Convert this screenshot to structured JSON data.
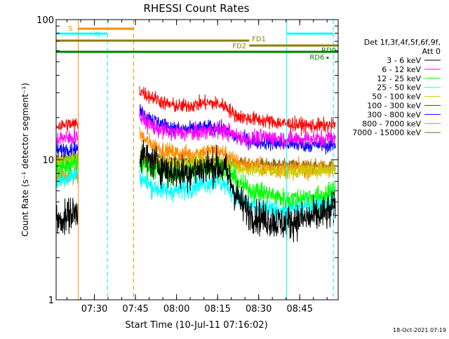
{
  "chart_data": {
    "type": "line",
    "title": "RHESSI Count Rates",
    "xlabel": "Start Time (10-Jul-11 07:16:02)",
    "ylabel": "Count Rate (s⁻¹ detector segment⁻¹)",
    "yscale": "log",
    "ylim": [
      1,
      100
    ],
    "xlim_minutes": [
      0,
      103
    ],
    "start_time": "07:16:02",
    "x_ticks": [
      {
        "label": "07:30",
        "t": 13.97
      },
      {
        "label": "07:45",
        "t": 28.97
      },
      {
        "label": "08:00",
        "t": 43.97
      },
      {
        "label": "08:15",
        "t": 58.97
      },
      {
        "label": "08:30",
        "t": 73.97
      },
      {
        "label": "08:45",
        "t": 88.97
      }
    ],
    "y_ticks": [
      {
        "label": "1",
        "v": 1
      },
      {
        "label": "10",
        "v": 10
      },
      {
        "label": "100",
        "v": 100
      }
    ],
    "legend_title": "Det 1f,3f,4f,5f,6f,9f,",
    "legend_subtitle": "Att 0",
    "data_gaps": [
      {
        "start": 8.0,
        "end": 30.5
      }
    ],
    "series": [
      {
        "name": "3 - 6 keV",
        "color": "#000000",
        "noise": 0.12,
        "values": [
          [
            0,
            3.8
          ],
          [
            1,
            3.6
          ],
          [
            2,
            3.9
          ],
          [
            3,
            3.7
          ],
          [
            4,
            3.9
          ],
          [
            5,
            4.2
          ],
          [
            6,
            4.0
          ],
          [
            7,
            4.3
          ],
          [
            8,
            4.3
          ],
          [
            30.5,
            11.0
          ],
          [
            31,
            11.0
          ],
          [
            33,
            10.2
          ],
          [
            36,
            9.5
          ],
          [
            40,
            8.5
          ],
          [
            45,
            8.0
          ],
          [
            50,
            8.3
          ],
          [
            55,
            8.8
          ],
          [
            59,
            9.0
          ],
          [
            62,
            8.3
          ],
          [
            65,
            6.0
          ],
          [
            68,
            4.7
          ],
          [
            72,
            4.0
          ],
          [
            76,
            3.8
          ],
          [
            80,
            3.6
          ],
          [
            84,
            3.5
          ],
          [
            88,
            3.7
          ],
          [
            92,
            3.8
          ],
          [
            96,
            4.0
          ],
          [
            100,
            4.2
          ],
          [
            102,
            4.6
          ]
        ]
      },
      {
        "name": "6 - 12 keV",
        "color": "#ff00ff",
        "noise": 0.06,
        "values": [
          [
            0,
            14.0
          ],
          [
            2,
            14.5
          ],
          [
            4,
            14.0
          ],
          [
            6,
            14.5
          ],
          [
            8,
            15.0
          ],
          [
            30.5,
            20.0
          ],
          [
            31,
            20.0
          ],
          [
            33,
            18.5
          ],
          [
            36,
            17.0
          ],
          [
            40,
            16.0
          ],
          [
            45,
            15.5
          ],
          [
            50,
            15.5
          ],
          [
            55,
            16.0
          ],
          [
            59,
            16.5
          ],
          [
            62,
            16.0
          ],
          [
            65,
            15.0
          ],
          [
            68,
            14.3
          ],
          [
            72,
            14.0
          ],
          [
            76,
            14.5
          ],
          [
            80,
            14.3
          ],
          [
            84,
            14.0
          ],
          [
            88,
            14.0
          ],
          [
            92,
            14.2
          ],
          [
            96,
            14.0
          ],
          [
            100,
            14.3
          ],
          [
            102,
            14.3
          ]
        ]
      },
      {
        "name": "12 - 25 keV",
        "color": "#00ff00",
        "noise": 0.07,
        "values": [
          [
            0,
            8.5
          ],
          [
            2,
            8.8
          ],
          [
            4,
            9.0
          ],
          [
            6,
            9.2
          ],
          [
            8,
            9.5
          ],
          [
            30.5,
            9.5
          ],
          [
            31,
            9.5
          ],
          [
            33,
            9.0
          ],
          [
            36,
            8.5
          ],
          [
            40,
            8.0
          ],
          [
            45,
            7.8
          ],
          [
            50,
            8.2
          ],
          [
            55,
            8.8
          ],
          [
            59,
            9.0
          ],
          [
            62,
            8.5
          ],
          [
            65,
            7.5
          ],
          [
            68,
            6.5
          ],
          [
            72,
            6.0
          ],
          [
            76,
            5.8
          ],
          [
            80,
            5.5
          ],
          [
            84,
            5.2
          ],
          [
            88,
            5.3
          ],
          [
            92,
            5.5
          ],
          [
            96,
            5.5
          ],
          [
            100,
            5.8
          ],
          [
            102,
            6.0
          ]
        ]
      },
      {
        "name": "25 - 50 keV",
        "color": "#00ffff",
        "noise": 0.07,
        "values": [
          [
            0,
            7.0
          ],
          [
            2,
            7.2
          ],
          [
            4,
            7.5
          ],
          [
            6,
            7.7
          ],
          [
            8,
            8.0
          ],
          [
            30.5,
            7.5
          ],
          [
            31,
            7.5
          ],
          [
            33,
            6.8
          ],
          [
            36,
            6.3
          ],
          [
            40,
            6.0
          ],
          [
            45,
            6.0
          ],
          [
            50,
            6.5
          ],
          [
            55,
            6.9
          ],
          [
            59,
            7.0
          ],
          [
            62,
            6.5
          ],
          [
            65,
            5.7
          ],
          [
            68,
            5.0
          ],
          [
            72,
            4.6
          ],
          [
            76,
            4.4
          ],
          [
            80,
            4.3
          ],
          [
            84,
            4.4
          ],
          [
            88,
            4.5
          ],
          [
            92,
            4.7
          ],
          [
            96,
            4.9
          ],
          [
            100,
            5.0
          ],
          [
            102,
            5.2
          ]
        ]
      },
      {
        "name": "50 - 100 keV",
        "color": "#cccc00",
        "noise": 0.05,
        "values": [
          [
            0,
            9.5
          ],
          [
            2,
            9.8
          ],
          [
            4,
            10.0
          ],
          [
            6,
            10.0
          ],
          [
            8,
            10.0
          ],
          [
            30.5,
            10.5
          ],
          [
            31,
            10.5
          ],
          [
            33,
            10.0
          ],
          [
            36,
            9.7
          ],
          [
            40,
            9.5
          ],
          [
            45,
            9.3
          ],
          [
            50,
            9.5
          ],
          [
            55,
            9.7
          ],
          [
            59,
            9.7
          ],
          [
            62,
            9.5
          ],
          [
            65,
            9.0
          ],
          [
            68,
            8.6
          ],
          [
            72,
            8.4
          ],
          [
            76,
            8.3
          ],
          [
            80,
            8.3
          ],
          [
            84,
            8.2
          ],
          [
            88,
            8.3
          ],
          [
            92,
            8.3
          ],
          [
            96,
            8.4
          ],
          [
            100,
            8.5
          ],
          [
            102,
            8.6
          ]
        ]
      },
      {
        "name": "100 - 300 keV",
        "color": "#ff0000",
        "noise": 0.05,
        "values": [
          [
            0,
            17.5
          ],
          [
            2,
            17.5
          ],
          [
            4,
            18.0
          ],
          [
            6,
            17.8
          ],
          [
            8,
            18.0
          ],
          [
            30.5,
            31.0
          ],
          [
            31,
            31.0
          ],
          [
            33,
            29.0
          ],
          [
            36,
            27.5
          ],
          [
            40,
            25.0
          ],
          [
            45,
            24.0
          ],
          [
            50,
            24.5
          ],
          [
            55,
            25.5
          ],
          [
            59,
            25.0
          ],
          [
            62,
            24.0
          ],
          [
            65,
            21.0
          ],
          [
            68,
            20.0
          ],
          [
            72,
            19.5
          ],
          [
            76,
            19.0
          ],
          [
            80,
            18.5
          ],
          [
            84,
            18.0
          ],
          [
            88,
            17.8
          ],
          [
            92,
            17.5
          ],
          [
            96,
            17.5
          ],
          [
            100,
            17.5
          ],
          [
            102,
            18.0
          ]
        ]
      },
      {
        "name": "300 - 800 keV",
        "color": "#0000ff",
        "noise": 0.05,
        "values": [
          [
            0,
            11.5
          ],
          [
            2,
            11.7
          ],
          [
            4,
            12.0
          ],
          [
            6,
            12.0
          ],
          [
            8,
            12.0
          ],
          [
            30.5,
            22.0
          ],
          [
            31,
            22.0
          ],
          [
            33,
            20.5
          ],
          [
            36,
            19.0
          ],
          [
            40,
            17.5
          ],
          [
            45,
            16.5
          ],
          [
            50,
            16.5
          ],
          [
            55,
            17.0
          ],
          [
            59,
            16.8
          ],
          [
            62,
            16.0
          ],
          [
            65,
            14.5
          ],
          [
            68,
            14.0
          ],
          [
            72,
            13.5
          ],
          [
            76,
            13.3
          ],
          [
            80,
            13.0
          ],
          [
            84,
            13.0
          ],
          [
            88,
            12.8
          ],
          [
            92,
            12.7
          ],
          [
            96,
            12.7
          ],
          [
            100,
            12.6
          ],
          [
            102,
            12.8
          ]
        ]
      },
      {
        "name": "800 - 7000 keV",
        "color": "#ff8c00",
        "noise": 0.06,
        "values": [
          [
            0,
            7.5
          ],
          [
            2,
            7.8
          ],
          [
            4,
            7.6
          ],
          [
            6,
            7.8
          ],
          [
            8,
            7.8
          ],
          [
            30.5,
            15.0
          ],
          [
            31,
            15.0
          ],
          [
            33,
            13.5
          ],
          [
            36,
            12.5
          ],
          [
            40,
            11.5
          ],
          [
            45,
            11.0
          ],
          [
            50,
            11.0
          ],
          [
            55,
            11.5
          ],
          [
            59,
            11.5
          ],
          [
            62,
            11.0
          ],
          [
            65,
            9.8
          ],
          [
            68,
            9.3
          ],
          [
            72,
            9.0
          ],
          [
            76,
            8.8
          ],
          [
            80,
            8.6
          ],
          [
            84,
            8.5
          ],
          [
            88,
            8.6
          ],
          [
            92,
            8.5
          ],
          [
            96,
            8.6
          ],
          [
            100,
            8.7
          ],
          [
            102,
            8.8
          ]
        ]
      },
      {
        "name": "7000 - 15000 keV",
        "color": "#8b6914",
        "noise": 0.04,
        "values": [
          [
            0,
            10.2
          ],
          [
            4,
            10.3
          ],
          [
            8,
            10.3
          ],
          [
            30.5,
            10.3
          ],
          [
            31,
            10.3
          ],
          [
            40,
            10.0
          ],
          [
            50,
            9.8
          ],
          [
            60,
            9.6
          ],
          [
            70,
            9.4
          ],
          [
            80,
            9.2
          ],
          [
            90,
            9.1
          ],
          [
            102,
            9.0
          ]
        ]
      }
    ],
    "vertical_lines": [
      {
        "t": 0.0,
        "color": "#00ffff",
        "style": "solid"
      },
      {
        "t": 8.1,
        "color": "#ff8c00",
        "style": "solid"
      },
      {
        "t": 18.8,
        "color": "#00ffff",
        "style": "dashed"
      },
      {
        "t": 28.3,
        "color": "#ff8c00",
        "style": "dashed"
      },
      {
        "t": 84.2,
        "color": "#00ffff",
        "style": "solid"
      },
      {
        "t": 101.3,
        "color": "#00ffff",
        "style": "dashed"
      }
    ],
    "flag_bars": [
      {
        "label": "S",
        "color": "#ff8c00",
        "start": 8.1,
        "end": 28.3,
        "label_side": "left"
      },
      {
        "label": "N",
        "color": "#00ffff",
        "start": 0.0,
        "end": 18.8,
        "label_side": "right-below"
      },
      {
        "label": "",
        "color": "#00ffff",
        "start": 84.2,
        "end": 101.3,
        "label_side": "none"
      },
      {
        "label": "FD1",
        "color": "#8b8000",
        "start": 0.0,
        "end": 70.5,
        "label_side": "right"
      },
      {
        "label": "FD2",
        "color": "#8b8000",
        "start": 70.5,
        "end": 103.0,
        "label_side": "left"
      },
      {
        "label": "RD0",
        "color": "#008000",
        "start": 0.0,
        "end": 103.0,
        "label_side": "right-above"
      },
      {
        "label": "RD6",
        "color": "#008000",
        "start": 99.0,
        "end": 99.3,
        "label_side": "left"
      }
    ]
  },
  "footer": {
    "timestamp": "18-Oct-2021 07:19"
  }
}
